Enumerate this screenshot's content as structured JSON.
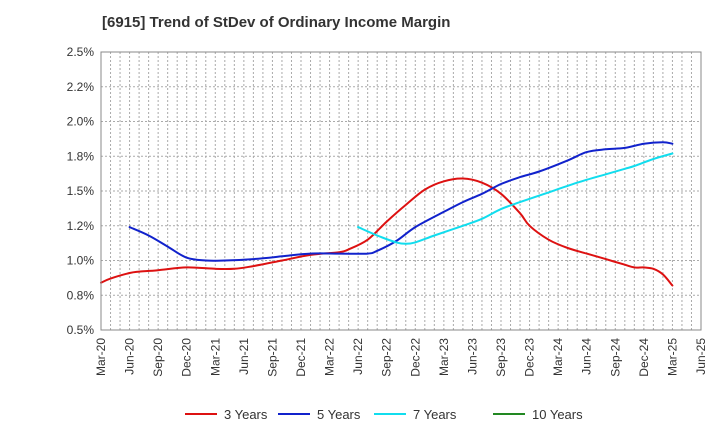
{
  "chart_data": {
    "type": "line",
    "title": "[6915]  Trend of StDev of Ordinary Income Margin",
    "xlabel": "",
    "ylabel": "",
    "x_ticks": [
      "Mar-20",
      "Jun-20",
      "Sep-20",
      "Dec-20",
      "Mar-21",
      "Jun-21",
      "Sep-21",
      "Dec-21",
      "Mar-22",
      "Jun-22",
      "Sep-22",
      "Dec-22",
      "Mar-23",
      "Jun-23",
      "Sep-23",
      "Dec-23",
      "Mar-24",
      "Jun-24",
      "Sep-24",
      "Dec-24",
      "Mar-25",
      "Jun-25"
    ],
    "y_ticks": [
      "0.5%",
      "0.8%",
      "1.0%",
      "1.2%",
      "1.5%",
      "1.8%",
      "2.0%",
      "2.2%",
      "2.5%"
    ],
    "ylim": [
      0.5,
      2.5
    ],
    "y_unit": "%",
    "grid": true,
    "legend_position": "bottom",
    "series": [
      {
        "name": "3 Years",
        "color": "#dd1111",
        "points": [
          [
            "Mar-20",
            0.84
          ],
          [
            "Apr-20",
            0.87
          ],
          [
            "Jun-20",
            0.91
          ],
          [
            "Jul-20",
            0.92
          ],
          [
            "Sep-20",
            0.93
          ],
          [
            "Dec-20",
            0.95
          ],
          [
            "Mar-21",
            0.94
          ],
          [
            "May-21",
            0.94
          ],
          [
            "Jul-21",
            0.96
          ],
          [
            "Oct-21",
            1.0
          ],
          [
            "Jan-22",
            1.04
          ],
          [
            "Apr-22",
            1.06
          ],
          [
            "May-22",
            1.08
          ],
          [
            "Jul-22",
            1.15
          ],
          [
            "Sep-22",
            1.28
          ],
          [
            "Nov-22",
            1.4
          ],
          [
            "Jan-23",
            1.51
          ],
          [
            "Mar-23",
            1.57
          ],
          [
            "May-23",
            1.59
          ],
          [
            "Jul-23",
            1.56
          ],
          [
            "Sep-23",
            1.48
          ],
          [
            "Nov-23",
            1.34
          ],
          [
            "Dec-23",
            1.25
          ],
          [
            "Feb-24",
            1.15
          ],
          [
            "Apr-24",
            1.09
          ],
          [
            "Jun-24",
            1.05
          ],
          [
            "Aug-24",
            1.01
          ],
          [
            "Oct-24",
            0.97
          ],
          [
            "Nov-24",
            0.95
          ],
          [
            "Dec-24",
            0.95
          ],
          [
            "Jan-25",
            0.94
          ],
          [
            "Feb-25",
            0.9
          ],
          [
            "Mar-25",
            0.82
          ]
        ]
      },
      {
        "name": "5 Years",
        "color": "#1122cc",
        "points": [
          [
            "Jun-20",
            1.24
          ],
          [
            "Aug-20",
            1.18
          ],
          [
            "Oct-20",
            1.1
          ],
          [
            "Dec-20",
            1.02
          ],
          [
            "Feb-21",
            1.0
          ],
          [
            "Apr-21",
            1.0
          ],
          [
            "Jul-21",
            1.01
          ],
          [
            "Oct-21",
            1.03
          ],
          [
            "Jan-22",
            1.05
          ],
          [
            "Apr-22",
            1.05
          ],
          [
            "Jul-22",
            1.05
          ],
          [
            "Aug-22",
            1.07
          ],
          [
            "Oct-22",
            1.14
          ],
          [
            "Dec-22",
            1.24
          ],
          [
            "Mar-23",
            1.35
          ],
          [
            "May-23",
            1.42
          ],
          [
            "Jul-23",
            1.48
          ],
          [
            "Sep-23",
            1.55
          ],
          [
            "Nov-23",
            1.6
          ],
          [
            "Jan-24",
            1.64
          ],
          [
            "Apr-24",
            1.72
          ],
          [
            "Jun-24",
            1.78
          ],
          [
            "Aug-24",
            1.8
          ],
          [
            "Oct-24",
            1.81
          ],
          [
            "Dec-24",
            1.84
          ],
          [
            "Feb-25",
            1.85
          ],
          [
            "Mar-25",
            1.84
          ]
        ]
      },
      {
        "name": "7 Years",
        "color": "#11ddee",
        "points": [
          [
            "Jun-22",
            1.24
          ],
          [
            "Aug-22",
            1.18
          ],
          [
            "Oct-22",
            1.13
          ],
          [
            "Nov-22",
            1.12
          ],
          [
            "Dec-22",
            1.13
          ],
          [
            "Feb-23",
            1.18
          ],
          [
            "May-23",
            1.25
          ],
          [
            "Jul-23",
            1.3
          ],
          [
            "Sep-23",
            1.37
          ],
          [
            "Nov-23",
            1.42
          ],
          [
            "Feb-24",
            1.49
          ],
          [
            "May-24",
            1.56
          ],
          [
            "Aug-24",
            1.62
          ],
          [
            "Oct-24",
            1.66
          ],
          [
            "Nov-24",
            1.68
          ],
          [
            "Jan-25",
            1.73
          ],
          [
            "Mar-25",
            1.77
          ]
        ]
      },
      {
        "name": "10 Years",
        "color": "#228822",
        "points": []
      }
    ]
  }
}
